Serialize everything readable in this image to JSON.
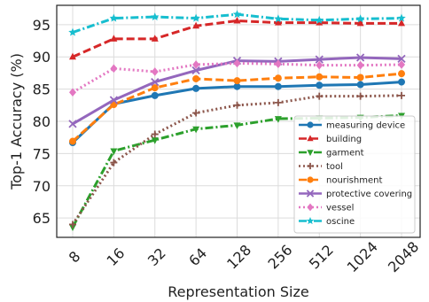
{
  "chart_data": {
    "type": "line",
    "title": "",
    "xlabel": "Representation Size",
    "ylabel": "Top-1 Accuracy (%)",
    "categories": [
      "8",
      "16",
      "32",
      "64",
      "128",
      "256",
      "512",
      "1024",
      "2048"
    ],
    "ylim": [
      62,
      98
    ],
    "yticks": [
      65,
      70,
      75,
      80,
      85,
      90,
      95
    ],
    "grid": true,
    "legend_position": "lower-right",
    "series": [
      {
        "name": "measuring device",
        "color": "#1f77b4",
        "dash": "solid",
        "marker": "circle",
        "values": [
          76.7,
          82.7,
          84.0,
          85.1,
          85.4,
          85.4,
          85.6,
          85.7,
          86.1
        ]
      },
      {
        "name": "building",
        "color": "#d62728",
        "dash": "dashed",
        "marker": "triangle-up",
        "values": [
          90.0,
          92.8,
          92.8,
          94.8,
          95.6,
          95.3,
          95.3,
          95.2,
          95.2
        ]
      },
      {
        "name": "garment",
        "color": "#2ca02c",
        "dash": "dashdot",
        "marker": "triangle-down",
        "values": [
          63.6,
          75.4,
          77.1,
          78.8,
          79.4,
          80.4,
          80.5,
          80.6,
          80.9
        ]
      },
      {
        "name": "tool",
        "color": "#8c564b",
        "dash": "dotted",
        "marker": "plus",
        "values": [
          64.0,
          73.6,
          78.0,
          81.3,
          82.5,
          82.9,
          83.9,
          83.9,
          84.0
        ]
      },
      {
        "name": "nourishment",
        "color": "#ff7f0e",
        "dash": "dashed",
        "marker": "circle",
        "values": [
          76.9,
          82.6,
          85.2,
          86.6,
          86.3,
          86.7,
          86.9,
          86.8,
          87.4
        ]
      },
      {
        "name": "protective covering",
        "color": "#9467bd",
        "dash": "solid",
        "marker": "x",
        "values": [
          79.6,
          83.3,
          86.1,
          87.9,
          89.4,
          89.3,
          89.6,
          89.9,
          89.7
        ]
      },
      {
        "name": "vessel",
        "color": "#e377c2",
        "dash": "dotted",
        "marker": "diamond",
        "values": [
          84.5,
          88.2,
          87.7,
          88.8,
          89.0,
          88.9,
          88.7,
          88.7,
          88.8
        ]
      },
      {
        "name": "oscine",
        "color": "#17becf",
        "dash": "dashdot",
        "marker": "star",
        "values": [
          93.8,
          96.0,
          96.2,
          96.0,
          96.6,
          95.9,
          95.7,
          95.9,
          96.0
        ]
      }
    ]
  }
}
